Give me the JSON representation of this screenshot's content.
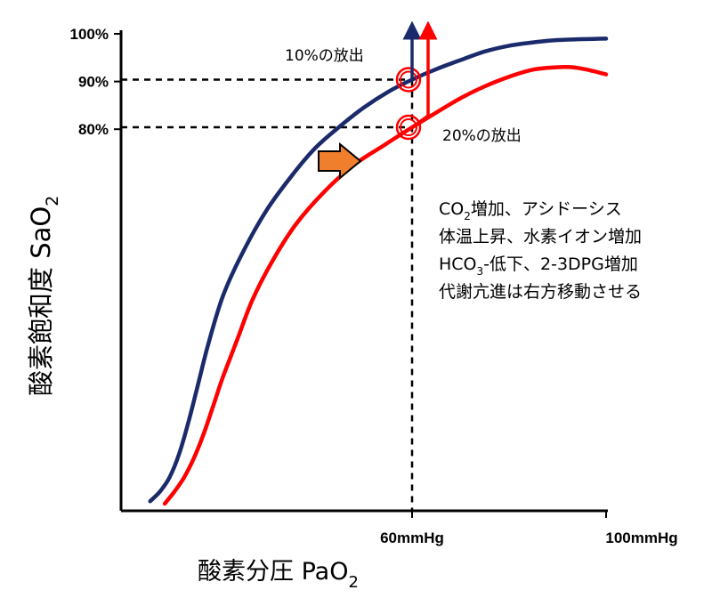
{
  "chart_data": {
    "type": "line",
    "title": "",
    "xlabel": {
      "main": "酸素分圧  PaO",
      "sub": "2"
    },
    "ylabel": {
      "main": "酸素飽和度  SaO",
      "sub": "2"
    },
    "xlim": [
      0,
      100
    ],
    "ylim": [
      0,
      100
    ],
    "grid": false,
    "x_ticks": [
      {
        "value": 60,
        "label": "60mmHg"
      },
      {
        "value": 100,
        "label": "100mmHg"
      }
    ],
    "y_ticks": [
      {
        "value": 100,
        "label": "100%"
      },
      {
        "value": 90,
        "label": "90%"
      },
      {
        "value": 80,
        "label": "80%"
      }
    ],
    "series": [
      {
        "color": "#1a2a6b",
        "points": [
          [
            6,
            2
          ],
          [
            8,
            4
          ],
          [
            10,
            7
          ],
          [
            12,
            12
          ],
          [
            14,
            19
          ],
          [
            16,
            27
          ],
          [
            18,
            35
          ],
          [
            21,
            45
          ],
          [
            25,
            54
          ],
          [
            30,
            63
          ],
          [
            35,
            70
          ],
          [
            40,
            76
          ],
          [
            45,
            80.5
          ],
          [
            50,
            84.5
          ],
          [
            55,
            87.8
          ],
          [
            60,
            90.4
          ],
          [
            65,
            92.6
          ],
          [
            70,
            94.5
          ],
          [
            75,
            96.3
          ],
          [
            80,
            97.5
          ],
          [
            85,
            98.2
          ],
          [
            90,
            98.7
          ],
          [
            100,
            99
          ]
        ]
      },
      {
        "color": "#ff0000",
        "points": [
          [
            9,
            1.5
          ],
          [
            11,
            4
          ],
          [
            13,
            7
          ],
          [
            15,
            11
          ],
          [
            17,
            16
          ],
          [
            19,
            22
          ],
          [
            21,
            28
          ],
          [
            24,
            36
          ],
          [
            27,
            44
          ],
          [
            31,
            52
          ],
          [
            36,
            60
          ],
          [
            42,
            67
          ],
          [
            48,
            72.5
          ],
          [
            54,
            76.5
          ],
          [
            60,
            80.4
          ],
          [
            65,
            83.5
          ],
          [
            70,
            86.5
          ],
          [
            75,
            89
          ],
          [
            80,
            91
          ],
          [
            85,
            92.5
          ],
          [
            90,
            93
          ],
          [
            93,
            93
          ],
          [
            96,
            92.5
          ],
          [
            100,
            91.5
          ]
        ]
      }
    ],
    "guides": [
      {
        "x": 60,
        "y": 90.4
      },
      {
        "x": 60,
        "y": 80.4
      }
    ],
    "annotations": {
      "release_10": "10%の放出",
      "release_20": "20%の放出",
      "notes": [
        {
          "main": "CO",
          "sub": "2",
          "rest": "増加、アシドーシス"
        },
        {
          "main": "体温上昇、水素イオン増加",
          "sub": "",
          "rest": ""
        },
        {
          "main": "HCO",
          "sub": "3",
          "rest": "-低下、2-3DPG増加"
        },
        {
          "main": "代謝亢進は右方移動させる",
          "sub": "",
          "rest": ""
        }
      ]
    },
    "colors": {
      "upward_arrow_blue": "#1a2a6b",
      "upward_arrow_red": "#ff0000",
      "shift_arrow": "#f07f2d"
    },
    "icons": {
      "shift_arrow": "right-shift-arrow-icon"
    }
  }
}
